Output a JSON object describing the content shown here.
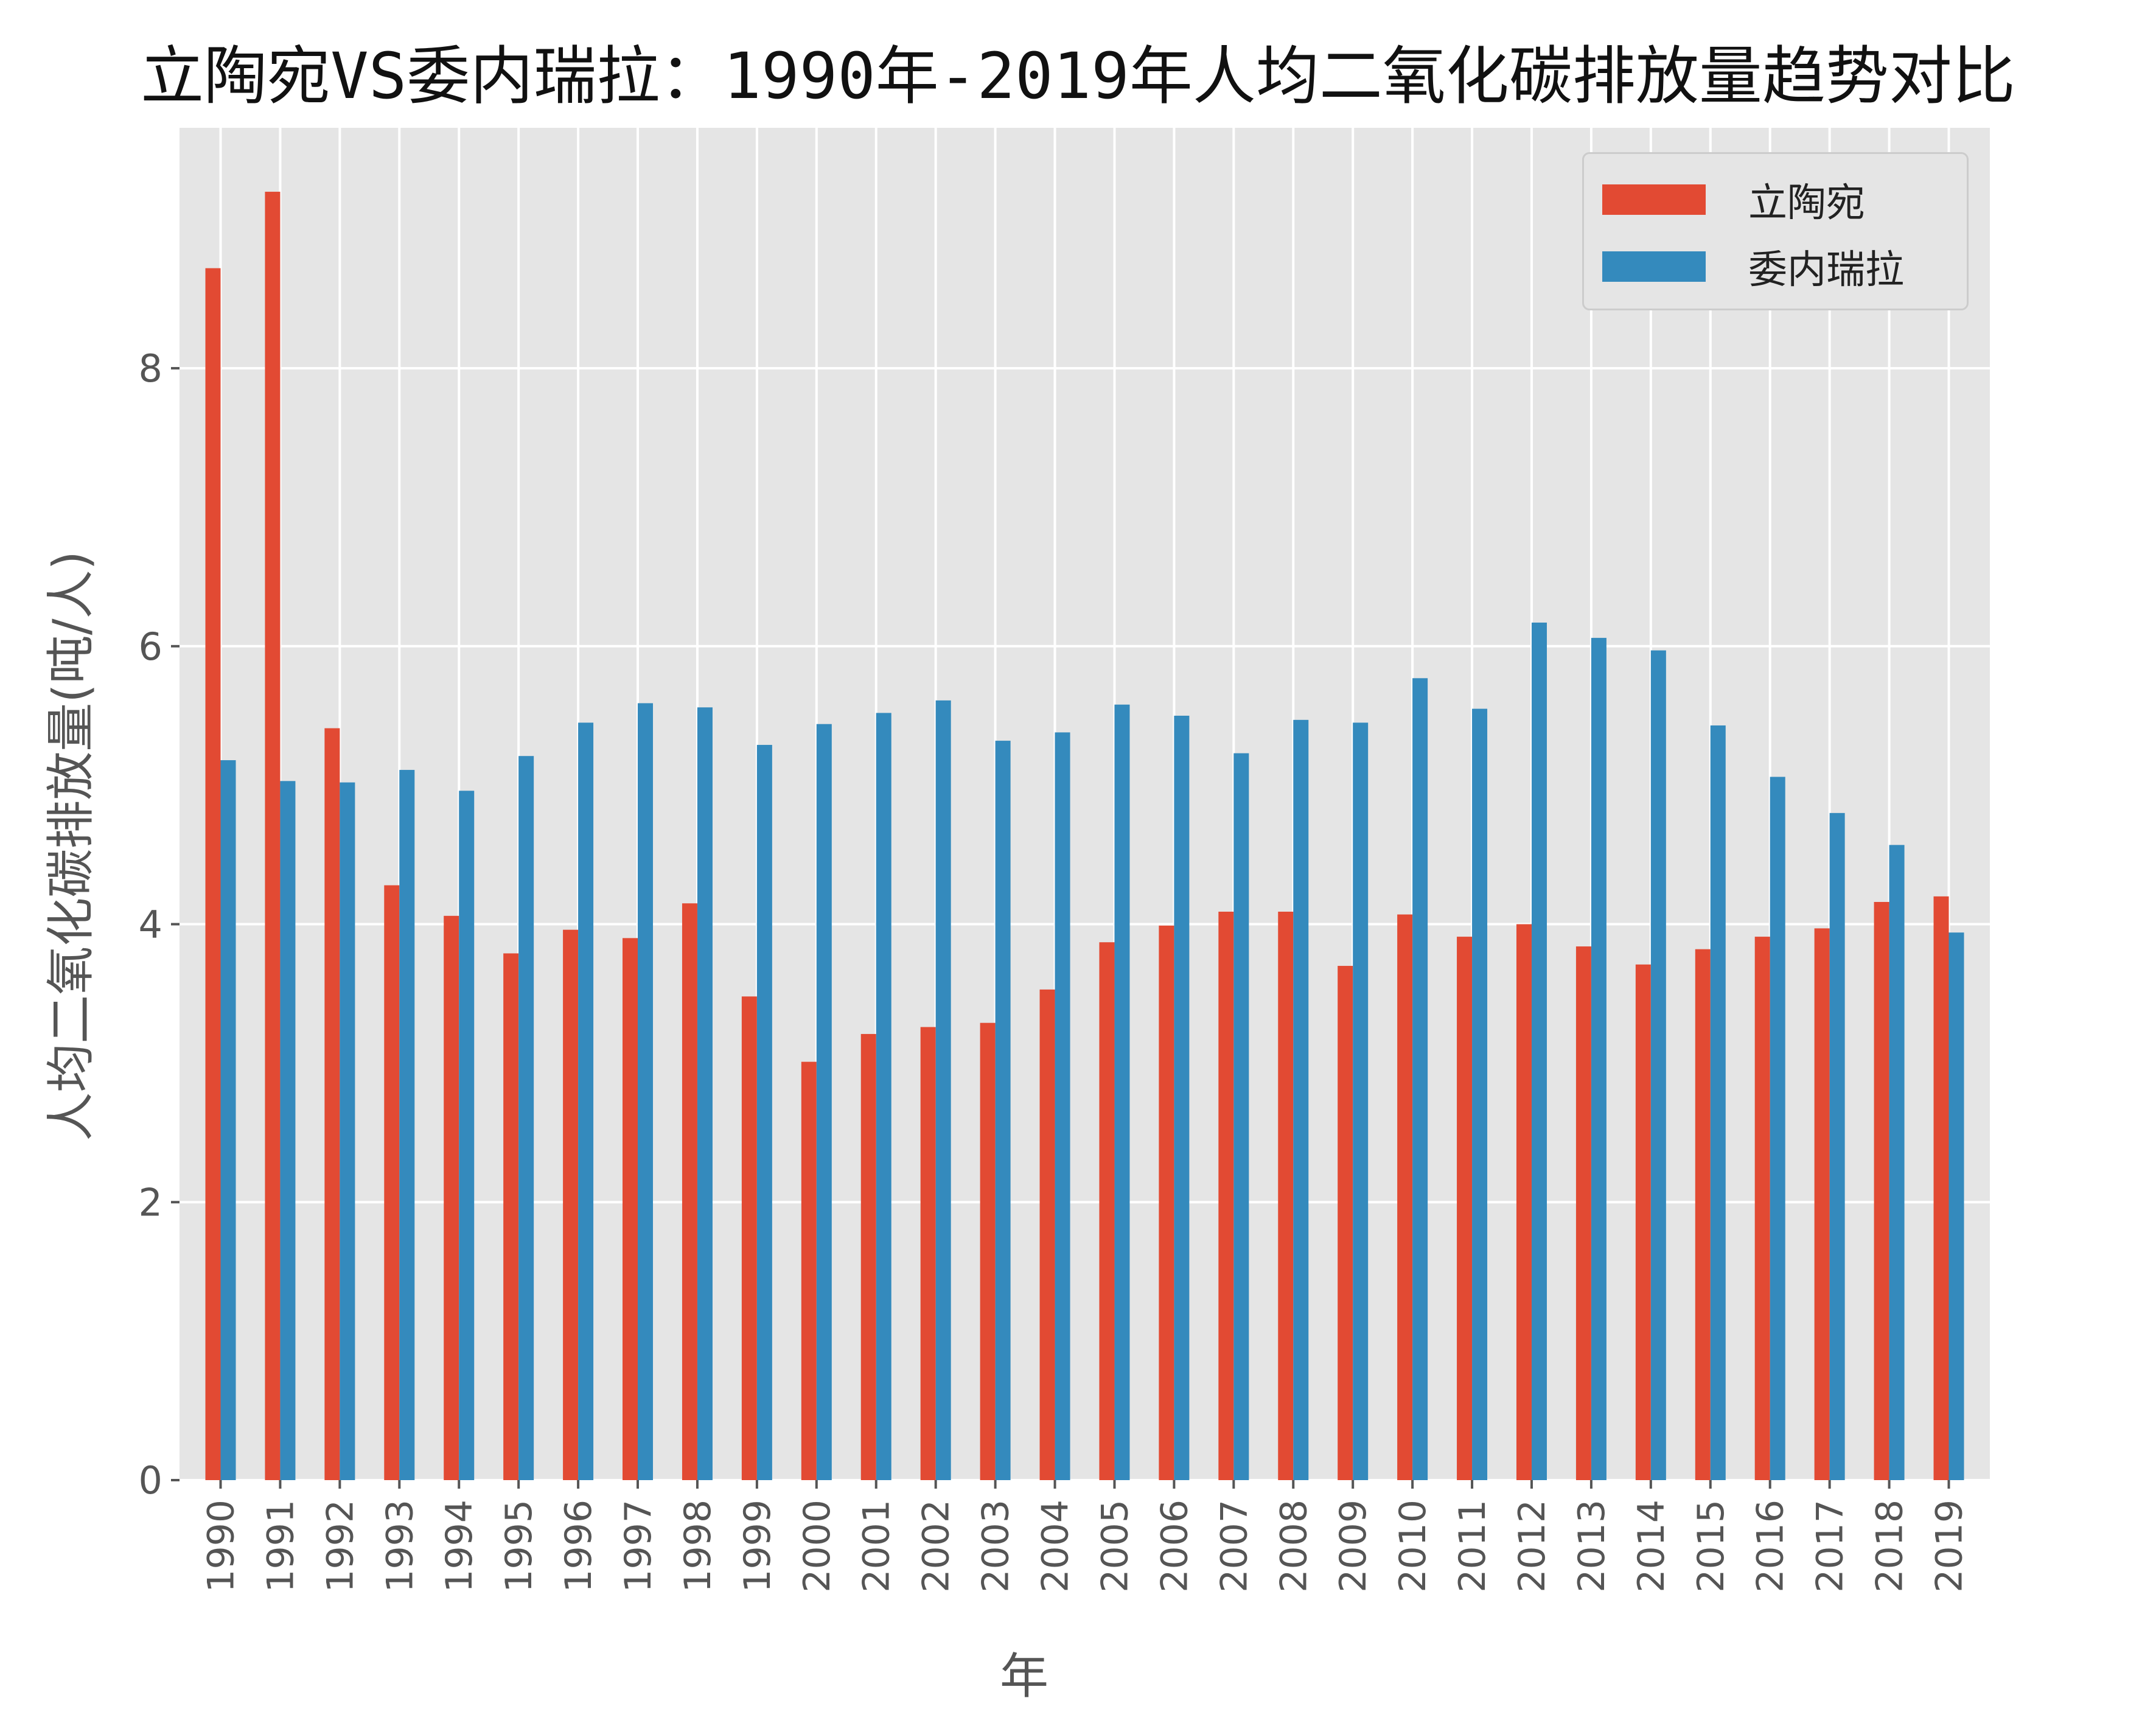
{
  "chart_data": {
    "type": "bar",
    "title": "立陶宛VS委内瑞拉：1990年-2019年人均二氧化碳排放量趋势对比",
    "xlabel": "年",
    "ylabel": "人均二氧化碳排放量(吨/人)",
    "categories": [
      "1990",
      "1991",
      "1992",
      "1993",
      "1994",
      "1995",
      "1996",
      "1997",
      "1998",
      "1999",
      "2000",
      "2001",
      "2002",
      "2003",
      "2004",
      "2005",
      "2006",
      "2007",
      "2008",
      "2009",
      "2010",
      "2011",
      "2012",
      "2013",
      "2014",
      "2015",
      "2016",
      "2017",
      "2018",
      "2019"
    ],
    "series": [
      {
        "name": "立陶宛",
        "color": "#E24A33",
        "values": [
          8.72,
          9.27,
          5.41,
          4.28,
          4.06,
          3.79,
          3.96,
          3.9,
          4.15,
          3.48,
          3.01,
          3.21,
          3.26,
          3.29,
          3.53,
          3.87,
          3.99,
          4.09,
          4.09,
          3.7,
          4.07,
          3.91,
          4.0,
          3.84,
          3.71,
          3.82,
          3.91,
          3.97,
          4.16,
          4.2
        ]
      },
      {
        "name": "委内瑞拉",
        "color": "#348ABD",
        "values": [
          5.18,
          5.03,
          5.02,
          5.11,
          4.96,
          5.21,
          5.45,
          5.59,
          5.56,
          5.29,
          5.44,
          5.52,
          5.61,
          5.32,
          5.38,
          5.58,
          5.5,
          5.23,
          5.47,
          5.45,
          5.77,
          5.55,
          6.17,
          6.06,
          5.97,
          5.43,
          5.06,
          4.8,
          4.57,
          3.94
        ]
      }
    ],
    "ylim": [
      0,
      9.73
    ],
    "yticks": [
      0,
      2,
      4,
      6,
      8
    ],
    "grid": true,
    "legend_position": "top-right",
    "plot_background": "#E5E5E5"
  }
}
